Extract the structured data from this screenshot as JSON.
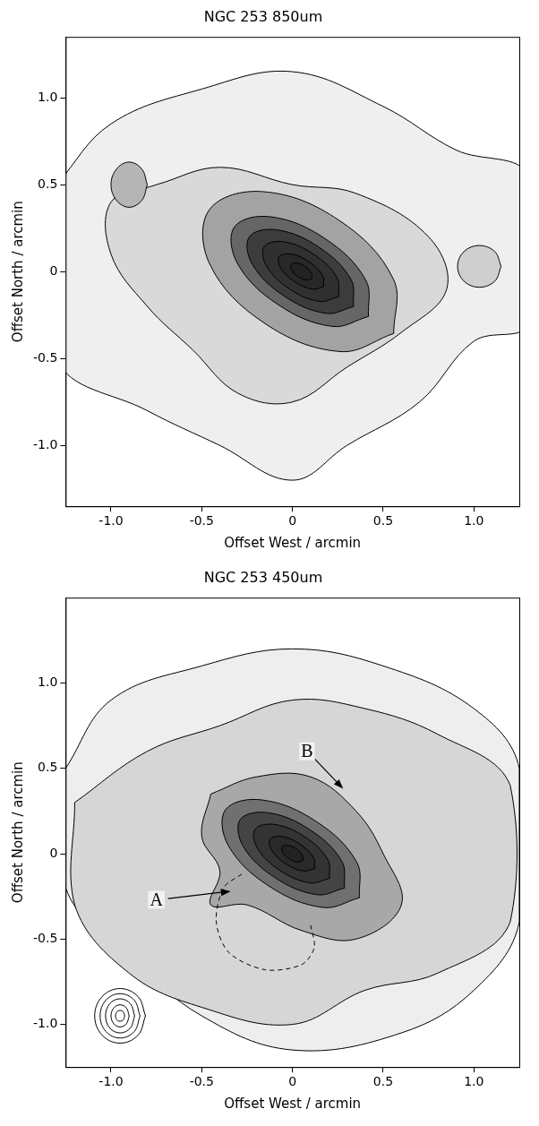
{
  "chart_data": [
    {
      "type": "contour",
      "title": "NGC 253 850um",
      "x_label": "Offset West / arcmin",
      "y_label": "Offset North / arcmin",
      "xlim": [
        -1.25,
        1.25
      ],
      "ylim": [
        -1.35,
        1.35
      ],
      "xticks": [
        {
          "value": -1,
          "label": "-1.0"
        },
        -0.5,
        0,
        0.5,
        {
          "value": 1,
          "label": "1.0"
        }
      ],
      "yticks": [
        {
          "value": -1,
          "label": "-1.0"
        },
        -0.5,
        0,
        0.5,
        {
          "value": 1,
          "label": "1.0"
        }
      ],
      "grid": false,
      "series": [
        {
          "color": "#efefef",
          "values": [
            [
              -1.3,
              0.5
            ],
            [
              -1.0,
              0.85
            ],
            [
              -0.5,
              1.05
            ],
            [
              0.0,
              1.15
            ],
            [
              0.5,
              0.95
            ],
            [
              0.9,
              0.7
            ],
            [
              1.3,
              0.55
            ],
            [
              1.3,
              -0.3
            ],
            [
              1.0,
              -0.4
            ],
            [
              0.7,
              -0.75
            ],
            [
              0.3,
              -1.0
            ],
            [
              0.0,
              -1.2
            ],
            [
              -0.4,
              -1.0
            ],
            [
              -0.8,
              -0.8
            ],
            [
              -1.3,
              -0.5
            ]
          ]
        },
        {
          "color": "#d9d9d9",
          "values": [
            [
              -0.75,
              0.5
            ],
            [
              -0.4,
              0.6
            ],
            [
              0.0,
              0.5
            ],
            [
              0.35,
              0.45
            ],
            [
              0.75,
              0.2
            ],
            [
              0.85,
              -0.1
            ],
            [
              0.6,
              -0.35
            ],
            [
              0.3,
              -0.55
            ],
            [
              0.0,
              -0.75
            ],
            [
              -0.3,
              -0.7
            ],
            [
              -0.55,
              -0.45
            ],
            [
              -0.8,
              -0.2
            ],
            [
              -1.0,
              0.1
            ],
            [
              -1.0,
              0.4
            ]
          ]
        },
        {
          "color": "#b5b5b5",
          "values": [
            [
              -0.8,
              0.5
            ],
            [
              -0.83,
              0.59
            ],
            [
              -0.9,
              0.63
            ],
            [
              -0.97,
              0.59
            ],
            [
              -1.0,
              0.5
            ],
            [
              -0.97,
              0.41
            ],
            [
              -0.9,
              0.37
            ],
            [
              -0.83,
              0.41
            ]
          ]
        },
        {
          "color": "#cfcfcf",
          "values": [
            [
              1.15,
              0.03
            ],
            [
              1.115,
              0.115
            ],
            [
              1.03,
              0.15
            ],
            [
              0.945,
              0.115
            ],
            [
              0.91,
              0.03
            ],
            [
              0.945,
              -0.055
            ],
            [
              1.03,
              -0.09
            ],
            [
              1.115,
              -0.055
            ]
          ]
        },
        {
          "color": "#a3a3a3",
          "values": [
            [
              0.558,
              -0.356
            ],
            [
              0.556,
              -0.043
            ],
            [
              0.257,
              0.295
            ],
            [
              -0.163,
              0.46
            ],
            [
              -0.458,
              0.356
            ],
            [
              -0.456,
              0.043
            ],
            [
              -0.157,
              -0.295
            ],
            [
              0.263,
              -0.46
            ]
          ]
        },
        {
          "color": "#666666",
          "values": [
            [
              0.419,
              -0.258
            ],
            [
              0.404,
              -0.049
            ],
            [
              0.182,
              0.188
            ],
            [
              -0.118,
              0.315
            ],
            [
              -0.319,
              0.258
            ],
            [
              -0.304,
              0.049
            ],
            [
              -0.082,
              -0.188
            ],
            [
              0.218,
              -0.315
            ]
          ]
        },
        {
          "color": "#3c3c3c",
          "values": [
            [
              0.337,
              -0.201
            ],
            [
              0.322,
              -0.044
            ],
            [
              0.148,
              0.139
            ],
            [
              -0.084,
              0.24
            ],
            [
              -0.237,
              0.201
            ],
            [
              -0.222,
              0.044
            ],
            [
              -0.048,
              -0.139
            ],
            [
              0.184,
              -0.24
            ]
          ]
        },
        {
          "color": "#303030",
          "values": [
            [
              0.255,
              -0.144
            ],
            [
              0.244,
              -0.033
            ],
            [
              0.119,
              0.098
            ],
            [
              -0.046,
              0.171
            ],
            [
              -0.155,
              0.144
            ],
            [
              -0.144,
              0.033
            ],
            [
              -0.019,
              -0.098
            ],
            [
              0.146,
              -0.171
            ]
          ]
        },
        {
          "color": "#282828",
          "values": [
            [
              0.173,
              -0.086
            ],
            [
              0.165,
              -0.021
            ],
            [
              0.09,
              0.057
            ],
            [
              -0.009,
              0.101
            ],
            [
              -0.073,
              0.086
            ],
            [
              -0.065,
              0.021
            ],
            [
              0.01,
              -0.057
            ],
            [
              0.109,
              -0.101
            ]
          ]
        },
        {
          "color": "#222222",
          "values": [
            [
              0.107,
              -0.04
            ],
            [
              0.104,
              -0.008
            ],
            [
              0.07,
              0.029
            ],
            [
              0.024,
              0.049
            ],
            [
              -0.007,
              0.04
            ],
            [
              -0.004,
              0.008
            ],
            [
              0.03,
              -0.029
            ],
            [
              0.076,
              -0.049
            ]
          ]
        }
      ]
    },
    {
      "type": "contour",
      "title": "NGC 253 450um",
      "x_label": "Offset West / arcmin",
      "y_label": "Offset North / arcmin",
      "xlim": [
        -1.25,
        1.25
      ],
      "ylim": [
        -1.25,
        1.5
      ],
      "xticks": [
        {
          "value": -1,
          "label": "-1.0"
        },
        -0.5,
        0,
        0.5,
        {
          "value": 1,
          "label": "1.0"
        }
      ],
      "yticks": [
        {
          "value": -1,
          "label": "-1.0"
        },
        -0.5,
        0,
        0.5,
        {
          "value": 1,
          "label": "1.0"
        }
      ],
      "grid": false,
      "series": [
        {
          "color": "#eeeeee",
          "values": [
            [
              -1.25,
              0.5
            ],
            [
              -1.0,
              0.9
            ],
            [
              -0.5,
              1.1
            ],
            [
              0.0,
              1.2
            ],
            [
              0.5,
              1.1
            ],
            [
              1.0,
              0.85
            ],
            [
              1.25,
              0.5
            ],
            [
              1.25,
              -0.4
            ],
            [
              1.0,
              -0.8
            ],
            [
              0.6,
              -1.05
            ],
            [
              0.0,
              -1.15
            ],
            [
              -0.5,
              -0.95
            ],
            [
              -0.9,
              -0.6
            ],
            [
              -1.25,
              -0.2
            ]
          ]
        },
        {
          "color": "#d6d6d6",
          "values": [
            [
              -1.2,
              0.3
            ],
            [
              -0.8,
              0.6
            ],
            [
              -0.4,
              0.75
            ],
            [
              0.0,
              0.9
            ],
            [
              0.4,
              0.85
            ],
            [
              0.8,
              0.7
            ],
            [
              1.2,
              0.4
            ],
            [
              1.2,
              -0.4
            ],
            [
              0.8,
              -0.7
            ],
            [
              0.4,
              -0.8
            ],
            [
              0.0,
              -1.0
            ],
            [
              -0.5,
              -0.9
            ],
            [
              -0.9,
              -0.7
            ],
            [
              -1.2,
              -0.3
            ]
          ]
        },
        {
          "color": "#a8a8a8",
          "values": [
            [
              -0.45,
              0.35
            ],
            [
              -0.2,
              0.45
            ],
            [
              0.1,
              0.45
            ],
            [
              0.35,
              0.25
            ],
            [
              0.5,
              0.0
            ],
            [
              0.6,
              -0.3
            ],
            [
              0.35,
              -0.5
            ],
            [
              0.05,
              -0.45
            ],
            [
              -0.25,
              -0.3
            ],
            [
              -0.45,
              -0.3
            ],
            [
              -0.4,
              -0.1
            ],
            [
              -0.5,
              0.1
            ]
          ]
        },
        {
          "color": "#707070",
          "values": [
            [
              0.369,
              -0.258
            ],
            [
              0.354,
              -0.049
            ],
            [
              0.132,
              0.188
            ],
            [
              -0.168,
              0.315
            ],
            [
              -0.369,
              0.258
            ],
            [
              -0.354,
              0.049
            ],
            [
              -0.132,
              -0.188
            ],
            [
              0.168,
              -0.315
            ]
          ]
        },
        {
          "color": "#444444",
          "values": [
            [
              0.287,
              -0.201
            ],
            [
              0.272,
              -0.044
            ],
            [
              0.098,
              0.139
            ],
            [
              -0.134,
              0.24
            ],
            [
              -0.287,
              0.201
            ],
            [
              -0.272,
              0.044
            ],
            [
              -0.098,
              -0.139
            ],
            [
              0.134,
              -0.24
            ]
          ]
        },
        {
          "color": "#333333",
          "values": [
            [
              0.205,
              -0.144
            ],
            [
              0.194,
              -0.033
            ],
            [
              0.069,
              0.098
            ],
            [
              -0.096,
              0.171
            ],
            [
              -0.205,
              0.144
            ],
            [
              -0.194,
              0.033
            ],
            [
              -0.069,
              -0.098
            ],
            [
              0.096,
              -0.171
            ]
          ]
        },
        {
          "color": "#2a2a2a",
          "values": [
            [
              0.123,
              -0.086
            ],
            [
              0.115,
              -0.021
            ],
            [
              0.04,
              0.057
            ],
            [
              -0.059,
              0.101
            ],
            [
              -0.123,
              0.086
            ],
            [
              -0.115,
              0.021
            ],
            [
              -0.04,
              -0.057
            ],
            [
              0.059,
              -0.101
            ]
          ]
        },
        {
          "color": "#222222",
          "values": [
            [
              0.057,
              -0.04
            ],
            [
              0.054,
              -0.008
            ],
            [
              0.02,
              0.029
            ],
            [
              -0.026,
              0.049
            ],
            [
              -0.057,
              0.04
            ],
            [
              -0.054,
              0.008
            ],
            [
              -0.02,
              -0.029
            ],
            [
              0.026,
              -0.049
            ]
          ]
        },
        {
          "type": "line",
          "line_style": "dashed",
          "values": [
            [
              -0.28,
              -0.12
            ],
            [
              -0.38,
              -0.2
            ],
            [
              -0.42,
              -0.4
            ],
            [
              -0.35,
              -0.58
            ],
            [
              -0.15,
              -0.68
            ],
            [
              0.05,
              -0.65
            ],
            [
              0.12,
              -0.55
            ],
            [
              0.1,
              -0.42
            ]
          ]
        },
        {
          "values": [
            [
              -0.81,
              -0.95
            ],
            [
              -0.851,
              -0.837
            ],
            [
              -0.95,
              -0.79
            ],
            [
              -1.049,
              -0.837
            ],
            [
              -1.09,
              -0.95
            ],
            [
              -1.049,
              -1.063
            ],
            [
              -0.95,
              -1.11
            ],
            [
              -0.851,
              -1.063
            ]
          ]
        },
        {
          "values": [
            [
              -0.84,
              -0.95
            ],
            [
              -0.872,
              -0.858
            ],
            [
              -0.95,
              -0.82
            ],
            [
              -1.028,
              -0.858
            ],
            [
              -1.06,
              -0.95
            ],
            [
              -1.028,
              -1.042
            ],
            [
              -0.95,
              -1.08
            ],
            [
              -0.872,
              -1.042
            ]
          ]
        },
        {
          "values": [
            [
              -0.87,
              -0.95
            ],
            [
              -0.893,
              -0.879
            ],
            [
              -0.95,
              -0.85
            ],
            [
              -1.007,
              -0.879
            ],
            [
              -1.03,
              -0.95
            ],
            [
              -1.007,
              -1.021
            ],
            [
              -0.95,
              -1.05
            ],
            [
              -0.893,
              -1.021
            ]
          ]
        },
        {
          "values": [
            [
              -0.9,
              -0.95
            ],
            [
              -0.915,
              -0.904
            ],
            [
              -0.95,
              -0.885
            ],
            [
              -0.985,
              -0.904
            ],
            [
              -1.0,
              -0.95
            ],
            [
              -0.985,
              -0.996
            ],
            [
              -0.95,
              -1.015
            ],
            [
              -0.915,
              -0.996
            ]
          ]
        },
        {
          "values": [
            [
              -0.925,
              -0.95
            ],
            [
              -0.932,
              -0.927
            ],
            [
              -0.95,
              -0.918
            ],
            [
              -0.968,
              -0.927
            ],
            [
              -0.975,
              -0.95
            ],
            [
              -0.968,
              -0.973
            ],
            [
              -0.95,
              -0.982
            ],
            [
              -0.932,
              -0.973
            ]
          ]
        }
      ],
      "annotations": [
        {
          "text": "A",
          "x": -0.75,
          "y": -0.27,
          "arrow_to": [
            -0.34,
            -0.22
          ]
        },
        {
          "text": "B",
          "x": 0.08,
          "y": 0.6,
          "arrow_to": [
            0.28,
            0.38
          ]
        }
      ]
    }
  ]
}
